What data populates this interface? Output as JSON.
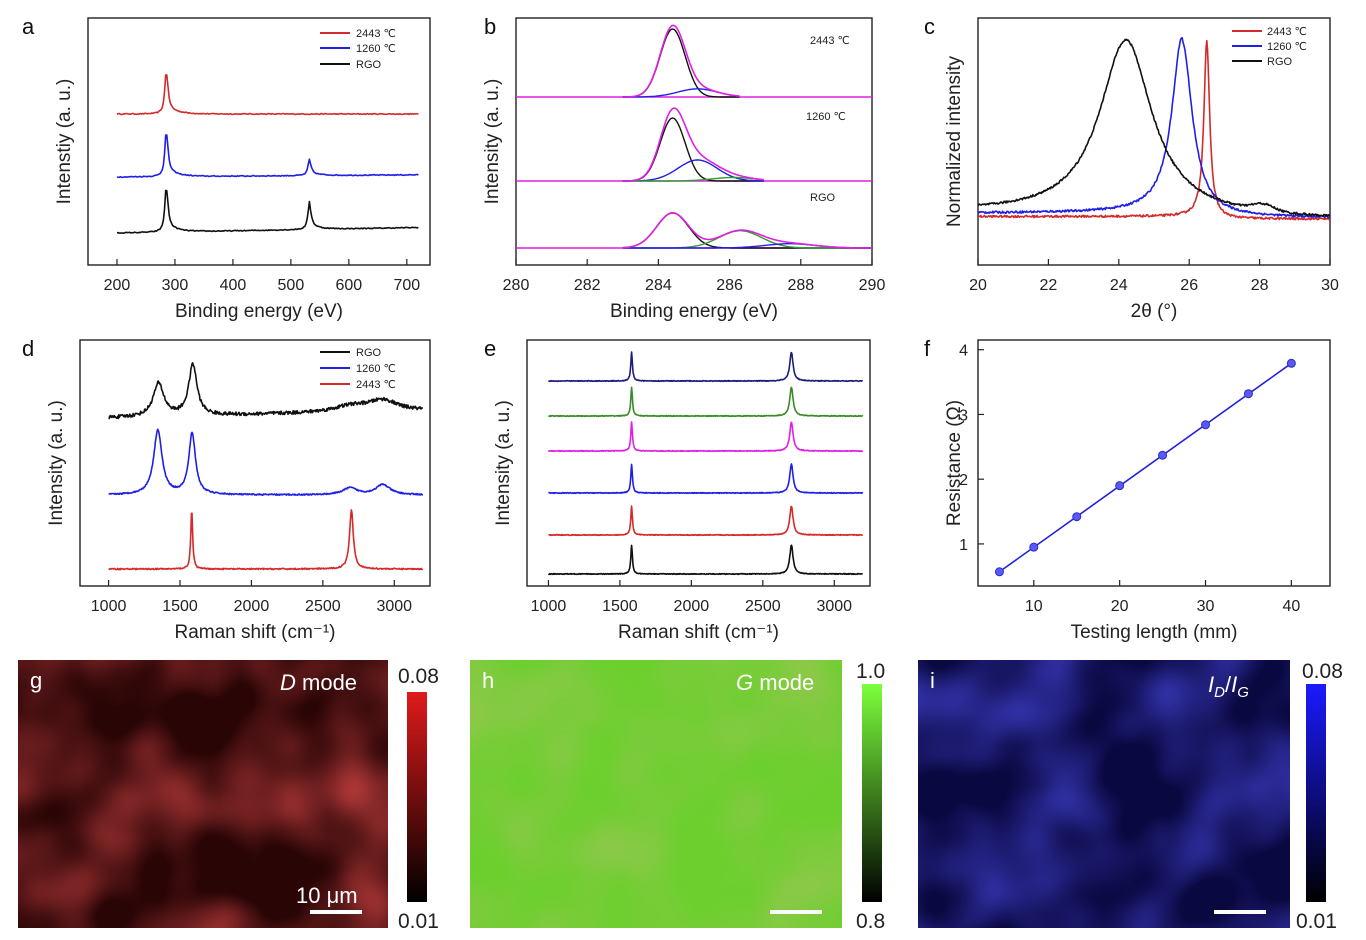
{
  "colors": {
    "red": "#d42a2a",
    "blue": "#1f1fe6",
    "black": "#111111",
    "magenta": "#e020e0",
    "green": "#2ea02e",
    "navy": "#1e1e7a",
    "olive": "#3a8a2a",
    "redmap": "#c8201c",
    "greenmap": "#7be04a",
    "bluemap": "#2020d0"
  },
  "chart_data": [
    {
      "panel": "a",
      "type": "line",
      "xlabel": "Binding energy (eV)",
      "ylabel": "Intenstiy (a. u.)",
      "xlim": [
        150,
        740
      ],
      "xticks": [
        200,
        300,
        400,
        500,
        600,
        700
      ],
      "legend": [
        "2443 ℃",
        "1260 ℃",
        "RGO"
      ],
      "series": [
        {
          "name": "2443 ℃",
          "color": "red",
          "offset": 2.0,
          "peaks": [
            {
              "x": 285,
              "h": 0.95,
              "w": 3
            }
          ],
          "baseline_slope": 0.0
        },
        {
          "name": "1260 ℃",
          "color": "blue",
          "offset": 1.0,
          "peaks": [
            {
              "x": 285,
              "h": 1.0,
              "w": 3
            },
            {
              "x": 532,
              "h": 0.35,
              "w": 3
            }
          ],
          "baseline_slope": 0.12
        },
        {
          "name": "RGO",
          "color": "black",
          "offset": 0.0,
          "peaks": [
            {
              "x": 285,
              "h": 1.0,
              "w": 3
            },
            {
              "x": 532,
              "h": 0.6,
              "w": 3
            }
          ],
          "baseline_slope": 0.3
        }
      ]
    },
    {
      "panel": "b",
      "type": "line",
      "xlabel": "Binding energy (eV)",
      "ylabel": "Intensity (a. u.)",
      "xlim": [
        280,
        290
      ],
      "xticks": [
        280,
        282,
        284,
        286,
        288,
        290
      ],
      "annotations": [
        "2443 ℃",
        "1260 ℃",
        "RGO"
      ],
      "series": [
        {
          "name": "2443 ℃",
          "offset": 2,
          "components": [
            {
              "x": 284.4,
              "h": 1.0,
              "w": 0.35,
              "color": "black"
            },
            {
              "x": 285.1,
              "h": 0.12,
              "w": 0.55,
              "color": "blue"
            }
          ],
          "envelope": "magenta"
        },
        {
          "name": "1260 ℃",
          "offset": 1,
          "components": [
            {
              "x": 284.4,
              "h": 0.9,
              "w": 0.35,
              "color": "black"
            },
            {
              "x": 285.1,
              "h": 0.3,
              "w": 0.55,
              "color": "blue"
            },
            {
              "x": 286.1,
              "h": 0.05,
              "w": 0.6,
              "color": "green"
            }
          ],
          "envelope": "magenta"
        },
        {
          "name": "RGO",
          "offset": 0,
          "components": [
            {
              "x": 284.4,
              "h": 0.65,
              "w": 0.45,
              "color": "black"
            },
            {
              "x": 286.3,
              "h": 0.32,
              "w": 0.6,
              "color": "green"
            },
            {
              "x": 287.7,
              "h": 0.08,
              "w": 0.7,
              "color": "blue"
            }
          ],
          "envelope": "magenta"
        }
      ]
    },
    {
      "panel": "c",
      "type": "line",
      "xlabel": "2θ (°)",
      "ylabel": "Normalized intensity",
      "xlim": [
        20,
        30
      ],
      "xticks": [
        20,
        22,
        24,
        26,
        28,
        30
      ],
      "legend": [
        "2443 ℃",
        "1260 ℃",
        "RGO"
      ],
      "series": [
        {
          "name": "2443 ℃",
          "color": "red",
          "center": 26.5,
          "width": 0.1,
          "base": 0.02
        },
        {
          "name": "1260 ℃",
          "color": "blue",
          "center": 25.8,
          "width": 0.35,
          "base": 0.04
        },
        {
          "name": "RGO",
          "color": "black",
          "center": 24.2,
          "width": 0.9,
          "base": 0.04
        }
      ]
    },
    {
      "panel": "d",
      "type": "line",
      "xlabel": "Raman shift (cm⁻¹)",
      "ylabel": "Intensity (a. u.)",
      "xlim": [
        800,
        3250
      ],
      "xticks": [
        1000,
        1500,
        2000,
        2500,
        3000
      ],
      "legend": [
        "RGO",
        "1260 ℃",
        "2443 ℃"
      ],
      "series": [
        {
          "name": "RGO",
          "color": "black",
          "offset": 2,
          "peaks": [
            {
              "x": 1350,
              "h": 0.55,
              "w": 45
            },
            {
              "x": 1590,
              "h": 0.85,
              "w": 35
            },
            {
              "x": 2700,
              "h": 0.1,
              "w": 150
            },
            {
              "x": 2920,
              "h": 0.18,
              "w": 120
            }
          ]
        },
        {
          "name": "1260 ℃",
          "color": "blue",
          "offset": 1,
          "peaks": [
            {
              "x": 1345,
              "h": 0.95,
              "w": 35
            },
            {
              "x": 1585,
              "h": 0.9,
              "w": 28
            },
            {
              "x": 2690,
              "h": 0.1,
              "w": 60
            },
            {
              "x": 2920,
              "h": 0.15,
              "w": 60
            }
          ]
        },
        {
          "name": "2443 ℃",
          "color": "red",
          "offset": 0,
          "peaks": [
            {
              "x": 1582,
              "h": 0.95,
              "w": 8
            },
            {
              "x": 2700,
              "h": 0.95,
              "w": 16
            }
          ]
        }
      ]
    },
    {
      "panel": "e",
      "type": "line",
      "xlabel": "Raman shift (cm⁻¹)",
      "ylabel": "Intensity (a. u.)",
      "xlim": [
        850,
        3250
      ],
      "xticks": [
        1000,
        1500,
        2000,
        2500,
        3000
      ],
      "series": [
        {
          "color": "navy",
          "offset": 5
        },
        {
          "color": "olive",
          "offset": 4
        },
        {
          "color": "magenta",
          "offset": 3
        },
        {
          "color": "blue",
          "offset": 2
        },
        {
          "color": "red",
          "offset": 1
        },
        {
          "color": "black",
          "offset": 0
        }
      ],
      "peaks": [
        {
          "x": 1582,
          "h": 0.8,
          "w": 7
        },
        {
          "x": 2700,
          "h": 0.8,
          "w": 14
        }
      ]
    },
    {
      "panel": "f",
      "type": "scatter",
      "xlabel": "Testing length (mm)",
      "ylabel": "Resistance (Ω)",
      "xlim": [
        3.5,
        44.5
      ],
      "ylim": [
        0.35,
        4.15
      ],
      "xticks": [
        10,
        20,
        30,
        40
      ],
      "yticks": [
        1,
        2,
        3,
        4
      ],
      "x": [
        6,
        10,
        15,
        20,
        25,
        30,
        35,
        40
      ],
      "y": [
        0.57,
        0.95,
        1.42,
        1.9,
        2.37,
        2.84,
        3.32,
        3.79
      ],
      "fit": {
        "x0": 6,
        "y0": 0.57,
        "x1": 40,
        "y1": 3.79
      }
    }
  ],
  "maps": [
    {
      "panel": "g",
      "title_italic": "D",
      "title_rest": " mode",
      "cbar_max": "0.08",
      "cbar_min": "0.01",
      "scalebar": "10 μm",
      "color": "redmap"
    },
    {
      "panel": "h",
      "title_italic": "G",
      "title_rest": " mode",
      "cbar_max": "1.0",
      "cbar_min": "0.8",
      "scalebar": "",
      "color": "greenmap"
    },
    {
      "panel": "i",
      "title_i1": "I",
      "title_s1": "D",
      "title_sl": "/",
      "title_i2": "I",
      "title_s2": "G",
      "cbar_max": "0.08",
      "cbar_min": "0.01",
      "scalebar": "",
      "color": "bluemap"
    }
  ],
  "labels": {
    "a": "a",
    "b": "b",
    "c": "c",
    "d": "d",
    "e": "e",
    "f": "f",
    "g": "g",
    "h": "h",
    "i": "i"
  }
}
